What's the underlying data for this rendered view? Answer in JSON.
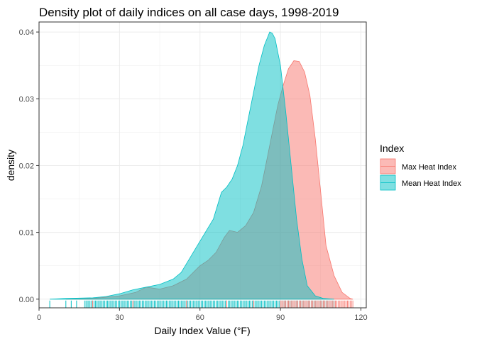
{
  "chart_data": {
    "type": "area",
    "title": "Density plot of daily indices on all case days, 1998-2019",
    "xlabel": "Daily Index Value (°F)",
    "ylabel": "density",
    "xlim": [
      0,
      122
    ],
    "ylim": [
      -0.0013,
      0.0415
    ],
    "x_ticks": [
      0,
      30,
      60,
      90,
      120
    ],
    "y_ticks": [
      0.0,
      0.01,
      0.02,
      0.03,
      0.04
    ],
    "y_tick_labels": [
      "0.00",
      "0.01",
      "0.02",
      "0.03",
      "0.04"
    ],
    "grid": true,
    "legend": {
      "title": "Index",
      "position": "right"
    },
    "series": [
      {
        "name": "Max Heat Index",
        "color": "#F8766D",
        "x": [
          10,
          20,
          30,
          36,
          40,
          45,
          50,
          55,
          60,
          63,
          66,
          69,
          71,
          74,
          77,
          80,
          83,
          85,
          87,
          89,
          91,
          93,
          95,
          97,
          99,
          101,
          103,
          105,
          107,
          110,
          113,
          116,
          117
        ],
        "values": [
          0,
          0.0001,
          0.0005,
          0.001,
          0.0018,
          0.0015,
          0.002,
          0.003,
          0.005,
          0.0058,
          0.007,
          0.0092,
          0.0103,
          0.01,
          0.011,
          0.013,
          0.017,
          0.021,
          0.025,
          0.029,
          0.032,
          0.0345,
          0.0357,
          0.0356,
          0.034,
          0.0305,
          0.024,
          0.016,
          0.008,
          0.0035,
          0.001,
          0.0001,
          0
        ]
      },
      {
        "name": "Mean Heat Index",
        "color": "#00BFC4",
        "x": [
          4,
          10,
          20,
          25,
          30,
          35,
          40,
          45,
          50,
          53,
          56,
          59,
          62,
          65,
          68,
          70,
          72,
          74,
          76,
          78,
          80,
          82,
          84,
          86,
          87,
          88,
          90,
          92,
          94,
          96,
          98,
          100,
          103,
          106,
          110
        ],
        "values": [
          0,
          0.0001,
          0.0002,
          0.0004,
          0.0008,
          0.0014,
          0.0018,
          0.0022,
          0.003,
          0.004,
          0.006,
          0.008,
          0.01,
          0.012,
          0.016,
          0.0168,
          0.018,
          0.02,
          0.023,
          0.027,
          0.031,
          0.035,
          0.038,
          0.04,
          0.0398,
          0.039,
          0.035,
          0.028,
          0.02,
          0.012,
          0.006,
          0.002,
          0.0005,
          0.0001,
          0
        ]
      }
    ],
    "rug": [
      {
        "series": "Mean Heat Index",
        "ranges": [
          [
            4,
            4
          ],
          [
            10,
            10
          ],
          [
            12,
            12
          ],
          [
            14,
            14
          ],
          [
            17,
            110
          ]
        ]
      },
      {
        "series": "Max Heat Index",
        "ranges": [
          [
            20,
            20
          ],
          [
            35,
            35
          ],
          [
            55,
            55
          ],
          [
            70,
            70
          ],
          [
            80,
            80
          ],
          [
            90,
            117
          ]
        ]
      }
    ]
  }
}
